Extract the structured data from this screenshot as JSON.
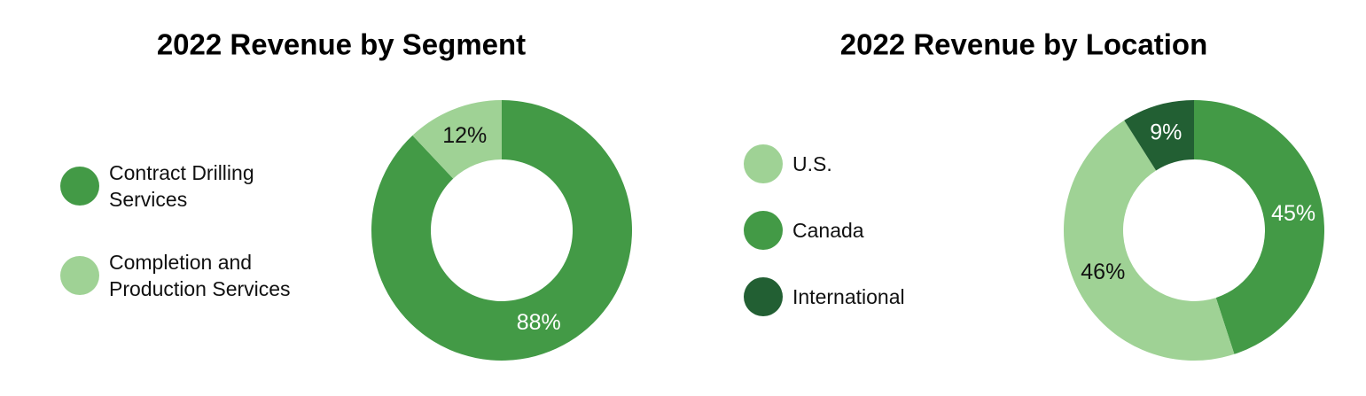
{
  "chart_data": [
    {
      "type": "pie",
      "title": "2022 Revenue by Segment",
      "categories": [
        "Contract Drilling Services",
        "Completion and Production Services"
      ],
      "values": [
        88,
        12
      ],
      "value_labels": [
        "88%",
        "12%"
      ],
      "colors": [
        "#439a46",
        "#9fd295"
      ]
    },
    {
      "type": "pie",
      "title": "2022 Revenue by Location",
      "categories": [
        "Canada",
        "U.S.",
        "International"
      ],
      "values": [
        45,
        46,
        9
      ],
      "value_labels": [
        "45%",
        "46%",
        "9%"
      ],
      "colors": [
        "#439a46",
        "#9fd295",
        "#225f33"
      ]
    }
  ]
}
